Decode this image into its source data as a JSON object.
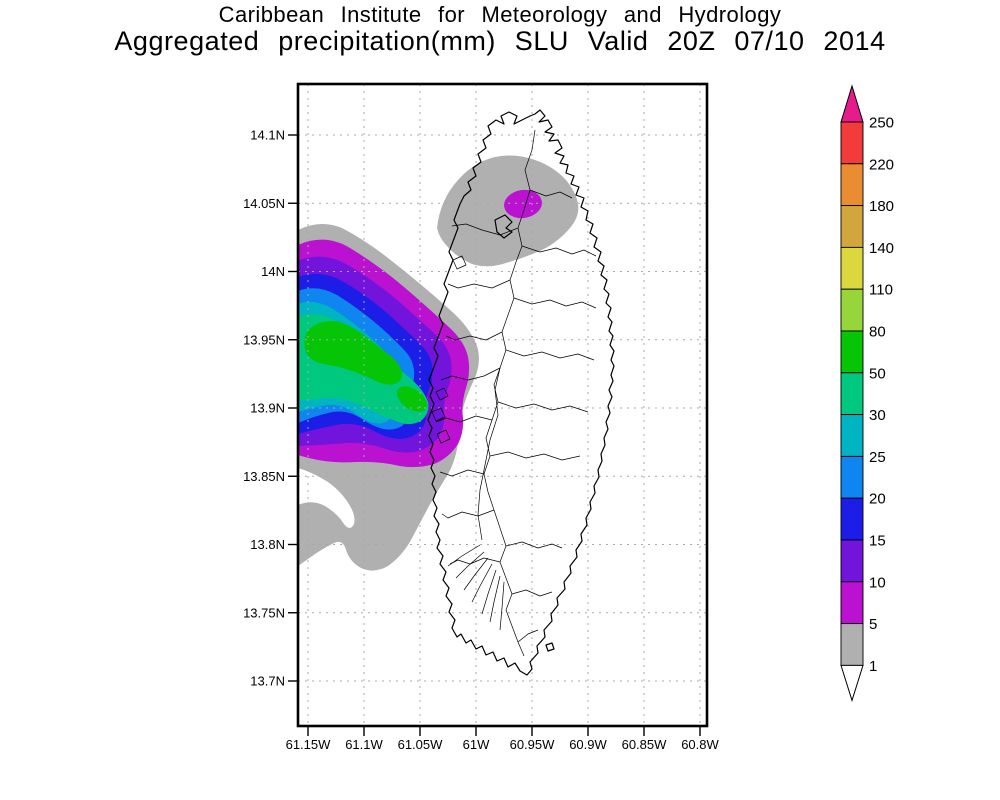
{
  "title": {
    "line1": "Caribbean Institute for Meteorology and Hydrology",
    "line2": "Aggregated precipitation(mm) SLU Valid 20Z 07/10 2014"
  },
  "axes": {
    "lat_labels": [
      "14.1N",
      "14.05N",
      "14N",
      "13.95N",
      "13.9N",
      "13.85N",
      "13.8N",
      "13.75N",
      "13.7N"
    ],
    "lon_labels": [
      "61.15W",
      "61.1W",
      "61.05W",
      "61W",
      "60.95W",
      "60.9W",
      "60.85W",
      "60.8W"
    ]
  },
  "colorbar": {
    "boundary_labels": [
      "250",
      "220",
      "180",
      "140",
      "110",
      "80",
      "50",
      "30",
      "25",
      "20",
      "15",
      "10",
      "5",
      "1"
    ],
    "segment_colors_top_to_bottom": [
      "#F23B3B",
      "#E98C32",
      "#D2A63C",
      "#DBD83E",
      "#96D63A",
      "#06C406",
      "#00C87E",
      "#00B4C3",
      "#0F85F0",
      "#1D1DE8",
      "#7214DC",
      "#BA12D0",
      "#B0B0B0"
    ],
    "above_max_color": "#E61C8C",
    "below_min_color": "#FFFFFF",
    "outline_color": "#000000"
  },
  "chart_data": {
    "type": "filled_contour_map",
    "region_code": "SLU",
    "units": "mm",
    "valid": "20Z 07/10 2014",
    "lat_axis": [
      "13.7N",
      "14.1N"
    ],
    "lon_axis": [
      "61.15W",
      "60.8W"
    ],
    "contour_levels_mm": [
      1,
      5,
      10,
      15,
      20,
      25,
      30,
      50,
      80,
      110,
      140,
      180,
      220,
      250
    ],
    "grid": "dotted",
    "features": [
      {
        "name": "west-offshore-rain-maximum",
        "approx_center": "13.95N 61.12W",
        "peak_band_mm": "50-80"
      },
      {
        "name": "north-island-light-rain-area",
        "approx_center": "14.05N 61.00W",
        "peak_band_mm": "5-10"
      },
      {
        "name": "southwest-coast-trace-band",
        "approx_center": "13.8N 61.15W",
        "peak_band_mm": "1-5"
      }
    ]
  }
}
